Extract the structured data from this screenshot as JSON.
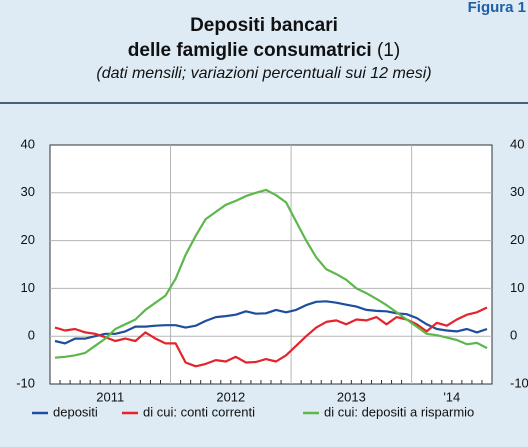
{
  "figure_label": "Figura 1",
  "chart_data": {
    "type": "line",
    "title": "Depositi bancari",
    "title_line2": "delle famiglie consumatrici",
    "title_note": "(1)",
    "subtitle": "(dati mensili; variazioni percentuali sui 12 mesi)",
    "categories": [
      null,
      null,
      null,
      null,
      null,
      null,
      null,
      null,
      null,
      null,
      null,
      null,
      null,
      null,
      null,
      null,
      null,
      null,
      null,
      null,
      null,
      null,
      null,
      null,
      null,
      null,
      null,
      null,
      null,
      null,
      null,
      null,
      null,
      null,
      null,
      null,
      null,
      null,
      null,
      null,
      null,
      null,
      null,
      null
    ],
    "year_labels": [
      "2011",
      "2012",
      "2013",
      "'14"
    ],
    "ylim": [
      -10,
      40
    ],
    "yticks": [
      -10,
      0,
      10,
      20,
      30,
      40
    ],
    "grid": true,
    "series": [
      {
        "name": "depositi",
        "color": "#1f4e9c",
        "values": [
          -1,
          -1.5,
          -0.5,
          -0.5,
          0,
          0.5,
          0.5,
          1,
          2,
          2,
          2.2,
          2.3,
          2.3,
          1.8,
          2.2,
          3.2,
          4,
          4.2,
          4.5,
          5.2,
          4.7,
          4.8,
          5.5,
          5,
          5.5,
          6.5,
          7.2,
          7.3,
          7,
          6.6,
          6.2,
          5.5,
          5.3,
          5.2,
          4.8,
          4.6,
          3.8,
          2.5,
          1.5,
          1.2,
          1,
          1.5,
          0.8,
          1.5
        ]
      },
      {
        "name": "di cui: conti correnti",
        "color": "#e3242b",
        "values": [
          1.8,
          1.2,
          1.5,
          0.8,
          0.5,
          -0.2,
          -1,
          -0.5,
          -1,
          0.8,
          -0.5,
          -1.5,
          -1.5,
          -5.5,
          -6.3,
          -5.8,
          -5,
          -5.3,
          -4.3,
          -5.5,
          -5.4,
          -4.8,
          -5.3,
          -4,
          -2,
          0,
          1.8,
          3,
          3.3,
          2.5,
          3.5,
          3.3,
          4,
          2.5,
          4,
          3.5,
          2.5,
          1,
          2.8,
          2.2,
          3.5,
          4.5,
          5,
          6
        ]
      },
      {
        "name": "di cui: depositi a risparmio",
        "color": "#5cb84a",
        "values": [
          -4.5,
          -4.3,
          -4,
          -3.5,
          -2,
          -0.5,
          1.5,
          2.5,
          3.5,
          5.5,
          7,
          8.5,
          12,
          17,
          21,
          24.5,
          26,
          27.5,
          28.3,
          29.3,
          30,
          30.6,
          29.5,
          28,
          24,
          20,
          16.5,
          14,
          13,
          11.8,
          10,
          9,
          7.8,
          6.5,
          5,
          3.5,
          2,
          0.5,
          0.2,
          -0.3,
          -0.8,
          -1.7,
          -1.4,
          -2.5
        ]
      }
    ]
  }
}
